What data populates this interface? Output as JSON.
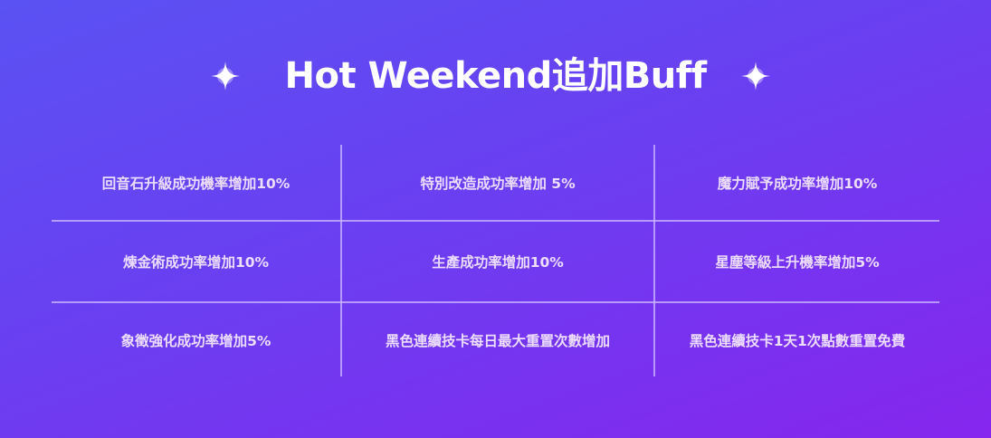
{
  "title": "Hot Weekend追加Buff",
  "icons": {
    "left": "sparkle-icon",
    "right": "sparkle-icon"
  },
  "colors": {
    "gradient_start": "#5a52f3",
    "gradient_end": "#8626ee",
    "text": "#ffffff",
    "cell_text": "#ecdcff"
  },
  "buffs": [
    [
      "回音石升級成功機率增加10%",
      "特別改造成功率增加 5%",
      "魔力賦予成功率增加10%"
    ],
    [
      "煉金術成功率增加10%",
      "生產成功率增加10%",
      "星塵等級上升機率增加5%"
    ],
    [
      "象徵強化成功率增加5%",
      "黑色連續技卡每日最大重置次數增加",
      "黑色連續技卡1天1次點數重置免費"
    ]
  ]
}
